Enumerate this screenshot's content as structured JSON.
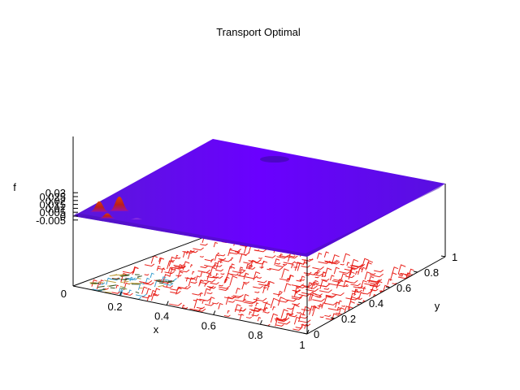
{
  "chart_data": {
    "type": "surface",
    "title": "Transport Optimal",
    "xlabel": "x",
    "ylabel": "y",
    "zlabel": "f",
    "xlim": [
      0,
      1
    ],
    "ylim": [
      0,
      1
    ],
    "zlim": [
      -0.005,
      0.03
    ],
    "x_ticks": [
      "0.2",
      "0.4",
      "0.6",
      "0.8",
      "1"
    ],
    "y_ticks": [
      "0",
      "0.2",
      "0.4",
      "0.6",
      "0.8",
      "1"
    ],
    "z_ticks": [
      "-0.005",
      "0",
      "0.005",
      "0.01",
      "0.015",
      "0.02",
      "0.025",
      "0.03"
    ],
    "base_zero_label": "0",
    "surface_baseline": 0,
    "peaks": [
      {
        "x": 0.04,
        "y": 0.12,
        "f": 0.0135
      },
      {
        "x": 0.09,
        "y": 0.18,
        "f": 0.0185
      },
      {
        "x": 0.11,
        "y": 0.06,
        "f": 0.0065
      },
      {
        "x": 0.2,
        "y": 0.12,
        "f": 0.002
      }
    ],
    "colors": {
      "surface": "#6a00ff",
      "surface_dark": "#4a10b8",
      "peak_high": "#d83000",
      "peak_mid": "#b01010",
      "contour": "#e8221c",
      "contour_alt": "#3aa0d0"
    },
    "grid": false,
    "legend": "none"
  }
}
